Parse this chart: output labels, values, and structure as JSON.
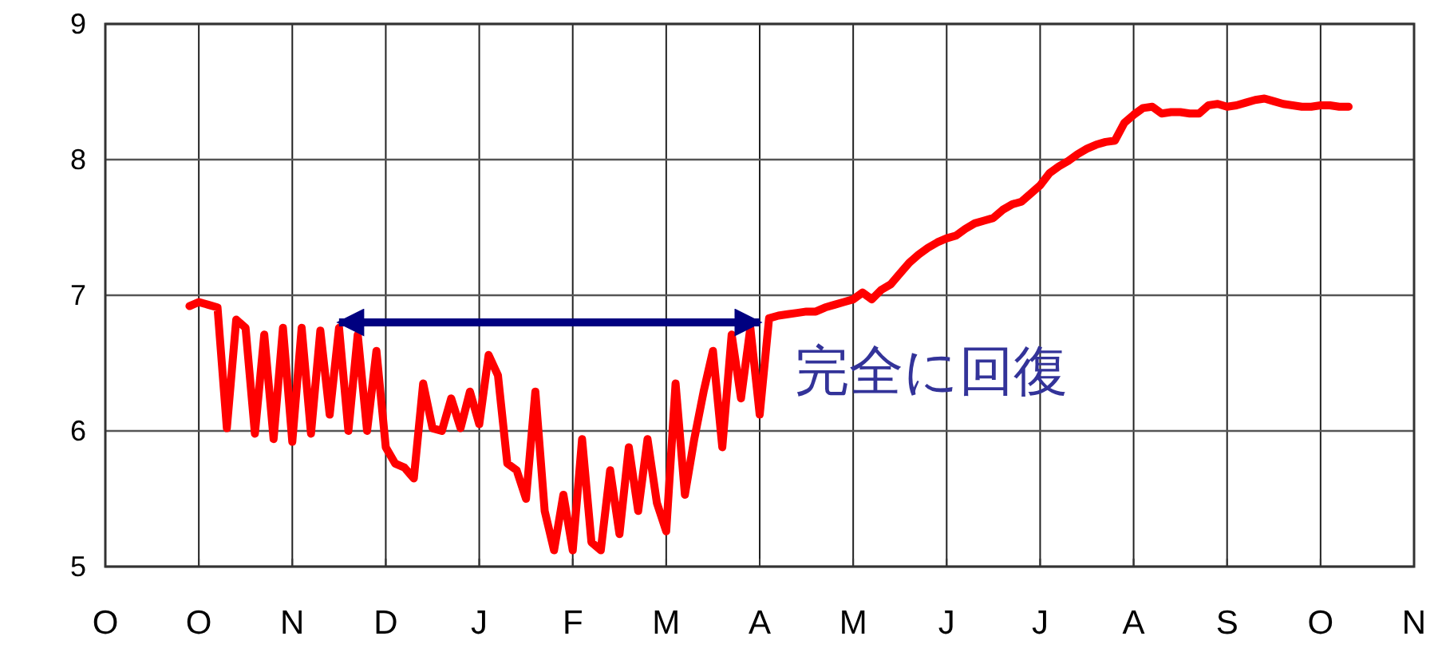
{
  "chart_data": {
    "type": "line",
    "categories": [
      "O",
      null,
      null,
      null,
      null,
      null,
      null,
      null,
      null,
      null,
      "O",
      null,
      null,
      null,
      null,
      null,
      null,
      null,
      null,
      null,
      "N",
      null,
      null,
      null,
      null,
      null,
      null,
      null,
      null,
      null,
      "D",
      null,
      null,
      null,
      null,
      null,
      null,
      null,
      null,
      null,
      "J",
      null,
      null,
      null,
      null,
      null,
      null,
      null,
      null,
      null,
      "F",
      null,
      null,
      null,
      null,
      null,
      null,
      null,
      null,
      null,
      "M",
      null,
      null,
      null,
      null,
      null,
      null,
      null,
      null,
      null,
      "A",
      null,
      null,
      null,
      null,
      null,
      null,
      null,
      null,
      null,
      "M",
      null,
      null,
      null,
      null,
      null,
      null,
      null,
      null,
      null,
      "J",
      null,
      null,
      null,
      null,
      null,
      null,
      null,
      null,
      null,
      "J",
      null,
      null,
      null,
      null,
      null,
      null,
      null,
      null,
      null,
      "A",
      null,
      null,
      null,
      null,
      null,
      null,
      null,
      null,
      null,
      "S",
      null,
      null,
      null,
      null,
      null,
      null,
      null,
      null,
      null,
      "O",
      null,
      null,
      null,
      null,
      null,
      null,
      null,
      null,
      null,
      "N"
    ],
    "series": [
      {
        "color": "#ff0000",
        "values": [
          null,
          null,
          null,
          null,
          null,
          null,
          null,
          null,
          null,
          6.92,
          6.95,
          6.93,
          6.91,
          6.02,
          6.82,
          6.76,
          5.98,
          6.71,
          5.94,
          6.76,
          5.92,
          6.76,
          5.98,
          6.74,
          6.12,
          6.76,
          6.0,
          6.71,
          6.0,
          6.59,
          5.88,
          5.76,
          5.73,
          5.65,
          6.35,
          6.02,
          6.0,
          6.24,
          6.02,
          6.29,
          6.05,
          6.56,
          6.41,
          5.76,
          5.71,
          5.5,
          6.29,
          5.41,
          5.12,
          5.53,
          5.12,
          5.94,
          5.18,
          5.12,
          5.71,
          5.24,
          5.88,
          5.41,
          5.94,
          5.47,
          5.26,
          6.35,
          5.53,
          5.94,
          6.29,
          6.59,
          5.88,
          6.71,
          6.24,
          6.76,
          6.12,
          6.83,
          6.85,
          6.86,
          6.87,
          6.88,
          6.88,
          6.91,
          6.93,
          6.95,
          6.97,
          7.02,
          6.97,
          7.04,
          7.08,
          7.16,
          7.24,
          7.3,
          7.35,
          7.39,
          7.42,
          7.44,
          7.49,
          7.53,
          7.55,
          7.57,
          7.63,
          7.67,
          7.69,
          7.75,
          7.81,
          7.9,
          7.95,
          7.99,
          8.04,
          8.08,
          8.11,
          8.13,
          8.14,
          8.27,
          8.33,
          8.38,
          8.39,
          8.34,
          8.35,
          8.35,
          8.34,
          8.34,
          8.4,
          8.41,
          8.39,
          8.4,
          8.42,
          8.44,
          8.45,
          8.43,
          8.41,
          8.4,
          8.39,
          8.39,
          8.4,
          8.4,
          8.39,
          8.39,
          null,
          null,
          null,
          null,
          null,
          null,
          null
        ]
      },
      {
        "color": "#000080",
        "values": [
          null,
          null,
          null,
          null,
          null,
          null,
          null,
          null,
          null,
          null,
          null,
          null,
          null,
          null,
          null,
          null,
          null,
          null,
          null,
          null,
          null,
          null,
          null,
          null,
          null,
          6.8,
          6.8,
          6.8,
          6.8,
          6.8,
          6.8,
          6.8,
          6.8,
          6.8,
          6.8,
          6.8,
          6.8,
          6.8,
          6.8,
          6.8,
          6.8,
          6.8,
          6.8,
          6.8,
          6.8,
          6.8,
          6.8,
          6.8,
          6.8,
          6.8,
          6.8,
          6.8,
          6.8,
          6.8,
          6.8,
          6.8,
          6.8,
          6.8,
          6.8,
          6.8,
          6.8,
          6.8,
          6.8,
          6.8,
          6.8,
          6.8,
          6.8,
          6.8,
          6.8,
          6.8,
          6.8,
          null,
          null,
          null,
          null,
          null,
          null,
          null,
          null,
          null,
          null,
          null,
          null,
          null,
          null,
          null,
          null,
          null,
          null,
          null,
          null,
          null,
          null,
          null,
          null,
          null,
          null,
          null,
          null,
          null,
          null,
          null,
          null,
          null,
          null,
          null,
          null,
          null,
          null,
          null,
          null,
          null,
          null,
          null,
          null,
          null,
          null,
          null,
          null,
          null,
          null,
          null,
          null,
          null,
          null,
          null,
          null,
          null,
          null,
          null,
          null,
          null,
          null,
          null,
          null,
          null,
          null,
          null,
          null,
          null,
          null
        ]
      }
    ],
    "ylim": [
      5,
      9
    ],
    "yticks": [
      5,
      6,
      7,
      8,
      9
    ],
    "grid": true,
    "annotations": [
      "完全に回復"
    ]
  }
}
